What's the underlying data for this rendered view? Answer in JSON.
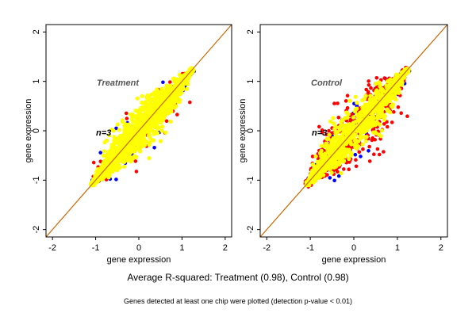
{
  "chart_data": [
    {
      "type": "scatter",
      "title": "Treatment",
      "annotation": "n=3",
      "xlabel": "gene expression",
      "ylabel": "gene expression",
      "xlim": [
        -2.15,
        2.15
      ],
      "ylim": [
        -2.15,
        2.15
      ],
      "xticks": [
        "-2",
        "-1",
        "0",
        "1",
        "2"
      ],
      "yticks": [
        "-2",
        "-1",
        "0",
        "1",
        "2"
      ],
      "grid": false,
      "reference_line": {
        "slope": 1,
        "intercept": 0,
        "color": "#cc6600"
      },
      "point_cloud": {
        "center": [
          0.0,
          0.0
        ],
        "range_along_diagonal": [
          -1.1,
          1.25
        ],
        "spread_normal": 0.3,
        "layers": [
          {
            "color": "#0000ff",
            "share": 0.03
          },
          {
            "color": "#ff0000",
            "share": 0.05
          },
          {
            "color": "#ffff00",
            "share": 0.92
          }
        ]
      }
    },
    {
      "type": "scatter",
      "title": "Control",
      "annotation": "n=3",
      "xlabel": "gene expression",
      "ylabel": "gene expression",
      "xlim": [
        -2.15,
        2.15
      ],
      "ylim": [
        -2.15,
        2.15
      ],
      "xticks": [
        "-2",
        "-1",
        "0",
        "1",
        "2"
      ],
      "yticks": [
        "-2",
        "-1",
        "0",
        "1",
        "2"
      ],
      "grid": false,
      "reference_line": {
        "slope": 1,
        "intercept": 0,
        "color": "#cc6600"
      },
      "point_cloud": {
        "center": [
          0.0,
          0.0
        ],
        "range_along_diagonal": [
          -1.1,
          1.25
        ],
        "spread_normal": 0.32,
        "layers": [
          {
            "color": "#0000ff",
            "share": 0.04
          },
          {
            "color": "#ff0000",
            "share": 0.36
          },
          {
            "color": "#ffff00",
            "share": 0.6
          }
        ]
      }
    }
  ],
  "caption": {
    "main": "Average R-squared: Treatment (0.98), Control (0.98)",
    "note": "Genes detected at least one chip were plotted (detection p-value < 0.01)"
  },
  "colors": {
    "yellow": "#ffff00",
    "red": "#ff0000",
    "blue": "#0000ff",
    "diagonal": "#cc6600"
  }
}
